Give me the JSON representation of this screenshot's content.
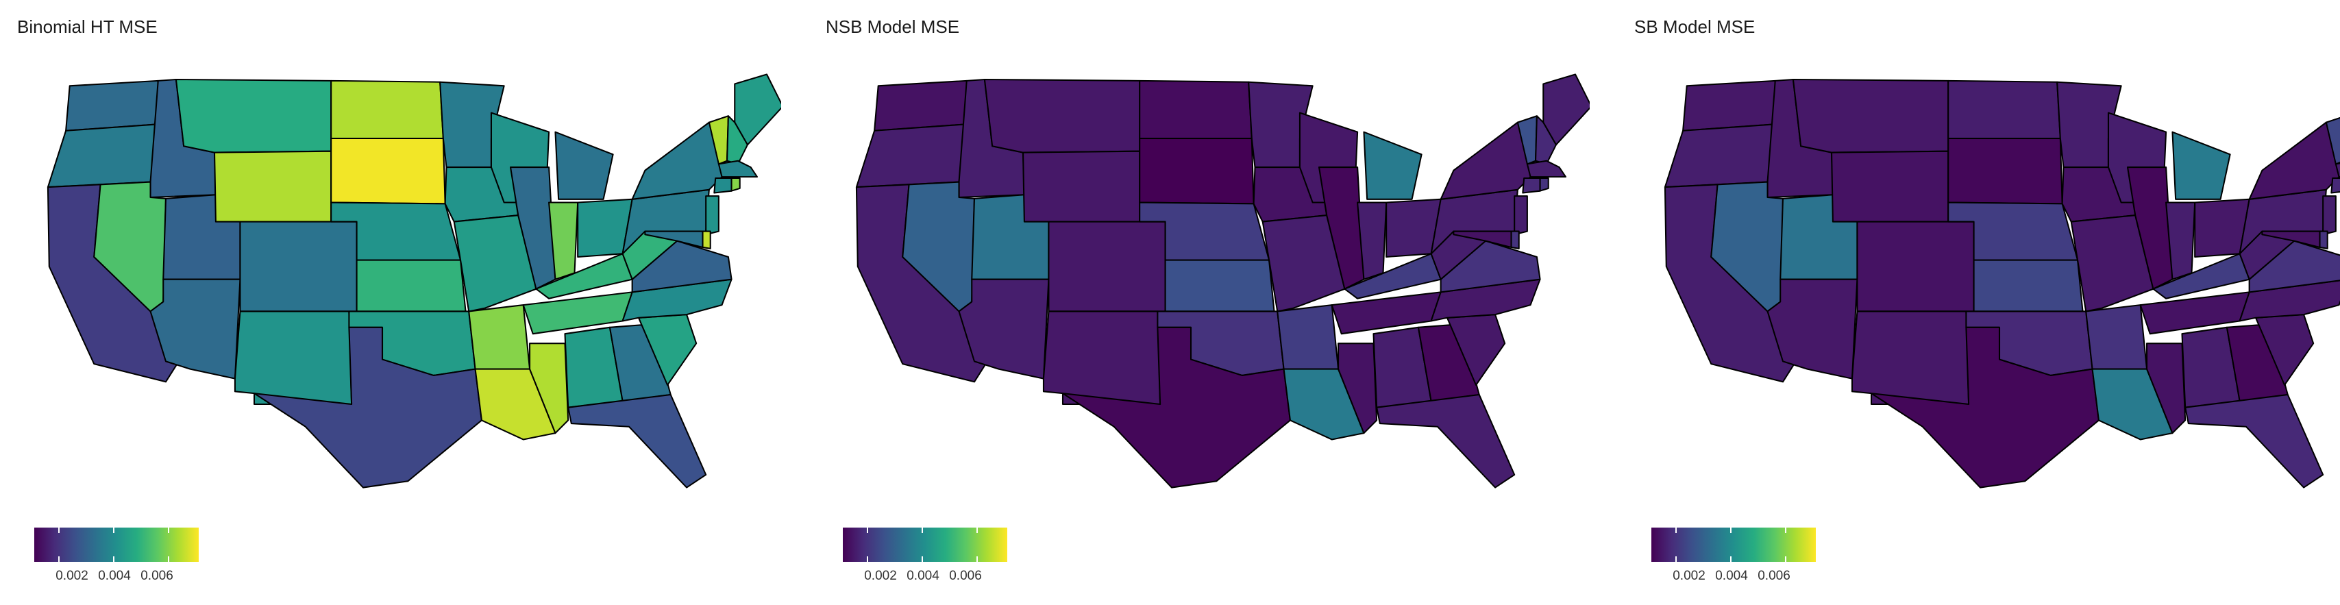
{
  "palette": [
    "#440154",
    "#472c7a",
    "#3b518b",
    "#2c718e",
    "#21908d",
    "#27ad81",
    "#5cc863",
    "#aadc32",
    "#fde725"
  ],
  "legend": {
    "ticks": [
      {
        "value": 0.002,
        "label": "0.002"
      },
      {
        "value": 0.004,
        "label": "0.004"
      },
      {
        "value": 0.006,
        "label": "0.006"
      }
    ],
    "range": [
      0.0011,
      0.0071
    ]
  },
  "panels": [
    {
      "title": "Binomial HT MSE",
      "values": {
        "WA": 0.0032,
        "OR": 0.0036,
        "CA": 0.0022,
        "ID": 0.003,
        "NV": 0.0054,
        "UT": 0.003,
        "AZ": 0.0032,
        "MT": 0.0048,
        "WY": 0.0064,
        "CO": 0.0034,
        "NM": 0.0042,
        "ND": 0.0064,
        "SD": 0.007,
        "NE": 0.0042,
        "KS": 0.005,
        "OK": 0.0044,
        "TX": 0.0024,
        "MN": 0.0036,
        "IA": 0.0042,
        "MO": 0.0044,
        "AR": 0.006,
        "LA": 0.0066,
        "WI": 0.0042,
        "IL": 0.0032,
        "MS": 0.0064,
        "MI": 0.0034,
        "IN": 0.0058,
        "OH": 0.0042,
        "KY": 0.005,
        "TN": 0.0052,
        "AL": 0.0044,
        "GA": 0.0034,
        "FL": 0.0026,
        "SC": 0.0046,
        "NC": 0.004,
        "VA": 0.003,
        "WV": 0.005,
        "PA": 0.0036,
        "NY": 0.0036,
        "ME": 0.0044,
        "VT": 0.0064,
        "NH": 0.0048,
        "MA": 0.0038,
        "CT": 0.004,
        "RI": 0.006,
        "NJ": 0.0042,
        "DE": 0.0066,
        "MD": 0.0034
      }
    },
    {
      "title": "NSB Model MSE",
      "values": {
        "WA": 0.0014,
        "OR": 0.0016,
        "CA": 0.0016,
        "ID": 0.0016,
        "NV": 0.003,
        "UT": 0.0034,
        "AZ": 0.0016,
        "MT": 0.0015,
        "WY": 0.0015,
        "CO": 0.0015,
        "NM": 0.0015,
        "ND": 0.0013,
        "SD": 0.0011,
        "NE": 0.0022,
        "KS": 0.0026,
        "OK": 0.002,
        "TX": 0.0012,
        "MN": 0.0016,
        "IA": 0.0014,
        "MO": 0.0016,
        "AR": 0.0022,
        "LA": 0.0036,
        "WI": 0.0015,
        "IL": 0.0012,
        "MS": 0.0014,
        "MI": 0.0036,
        "IN": 0.0016,
        "OH": 0.0016,
        "KY": 0.0022,
        "TN": 0.0014,
        "AL": 0.0016,
        "GA": 0.0012,
        "FL": 0.0016,
        "SC": 0.0015,
        "NC": 0.0015,
        "VA": 0.002,
        "WV": 0.0016,
        "PA": 0.0016,
        "NY": 0.0015,
        "ME": 0.0016,
        "VT": 0.0026,
        "NH": 0.0018,
        "MA": 0.0016,
        "CT": 0.0018,
        "RI": 0.002,
        "NJ": 0.0016,
        "DE": 0.002,
        "MD": 0.0014
      }
    },
    {
      "title": "SB Model MSE",
      "values": {
        "WA": 0.0015,
        "OR": 0.0016,
        "CA": 0.0016,
        "ID": 0.0015,
        "NV": 0.003,
        "UT": 0.0034,
        "AZ": 0.0015,
        "MT": 0.0015,
        "WY": 0.0014,
        "CO": 0.0014,
        "NM": 0.0015,
        "ND": 0.0016,
        "SD": 0.0012,
        "NE": 0.0022,
        "KS": 0.0024,
        "OK": 0.0018,
        "TX": 0.0012,
        "MN": 0.0016,
        "IA": 0.0014,
        "MO": 0.0015,
        "AR": 0.002,
        "LA": 0.0036,
        "WI": 0.0016,
        "IL": 0.0012,
        "MS": 0.0014,
        "MI": 0.0036,
        "IN": 0.0016,
        "OH": 0.0015,
        "KY": 0.0022,
        "TN": 0.0014,
        "AL": 0.0016,
        "GA": 0.0012,
        "FL": 0.0018,
        "SC": 0.0015,
        "NC": 0.0015,
        "VA": 0.002,
        "WV": 0.0016,
        "PA": 0.0016,
        "NY": 0.0014,
        "ME": 0.0018,
        "VT": 0.0024,
        "NH": 0.0018,
        "MA": 0.0016,
        "CT": 0.0018,
        "RI": 0.002,
        "NJ": 0.0016,
        "DE": 0.002,
        "MD": 0.0014
      }
    }
  ]
}
